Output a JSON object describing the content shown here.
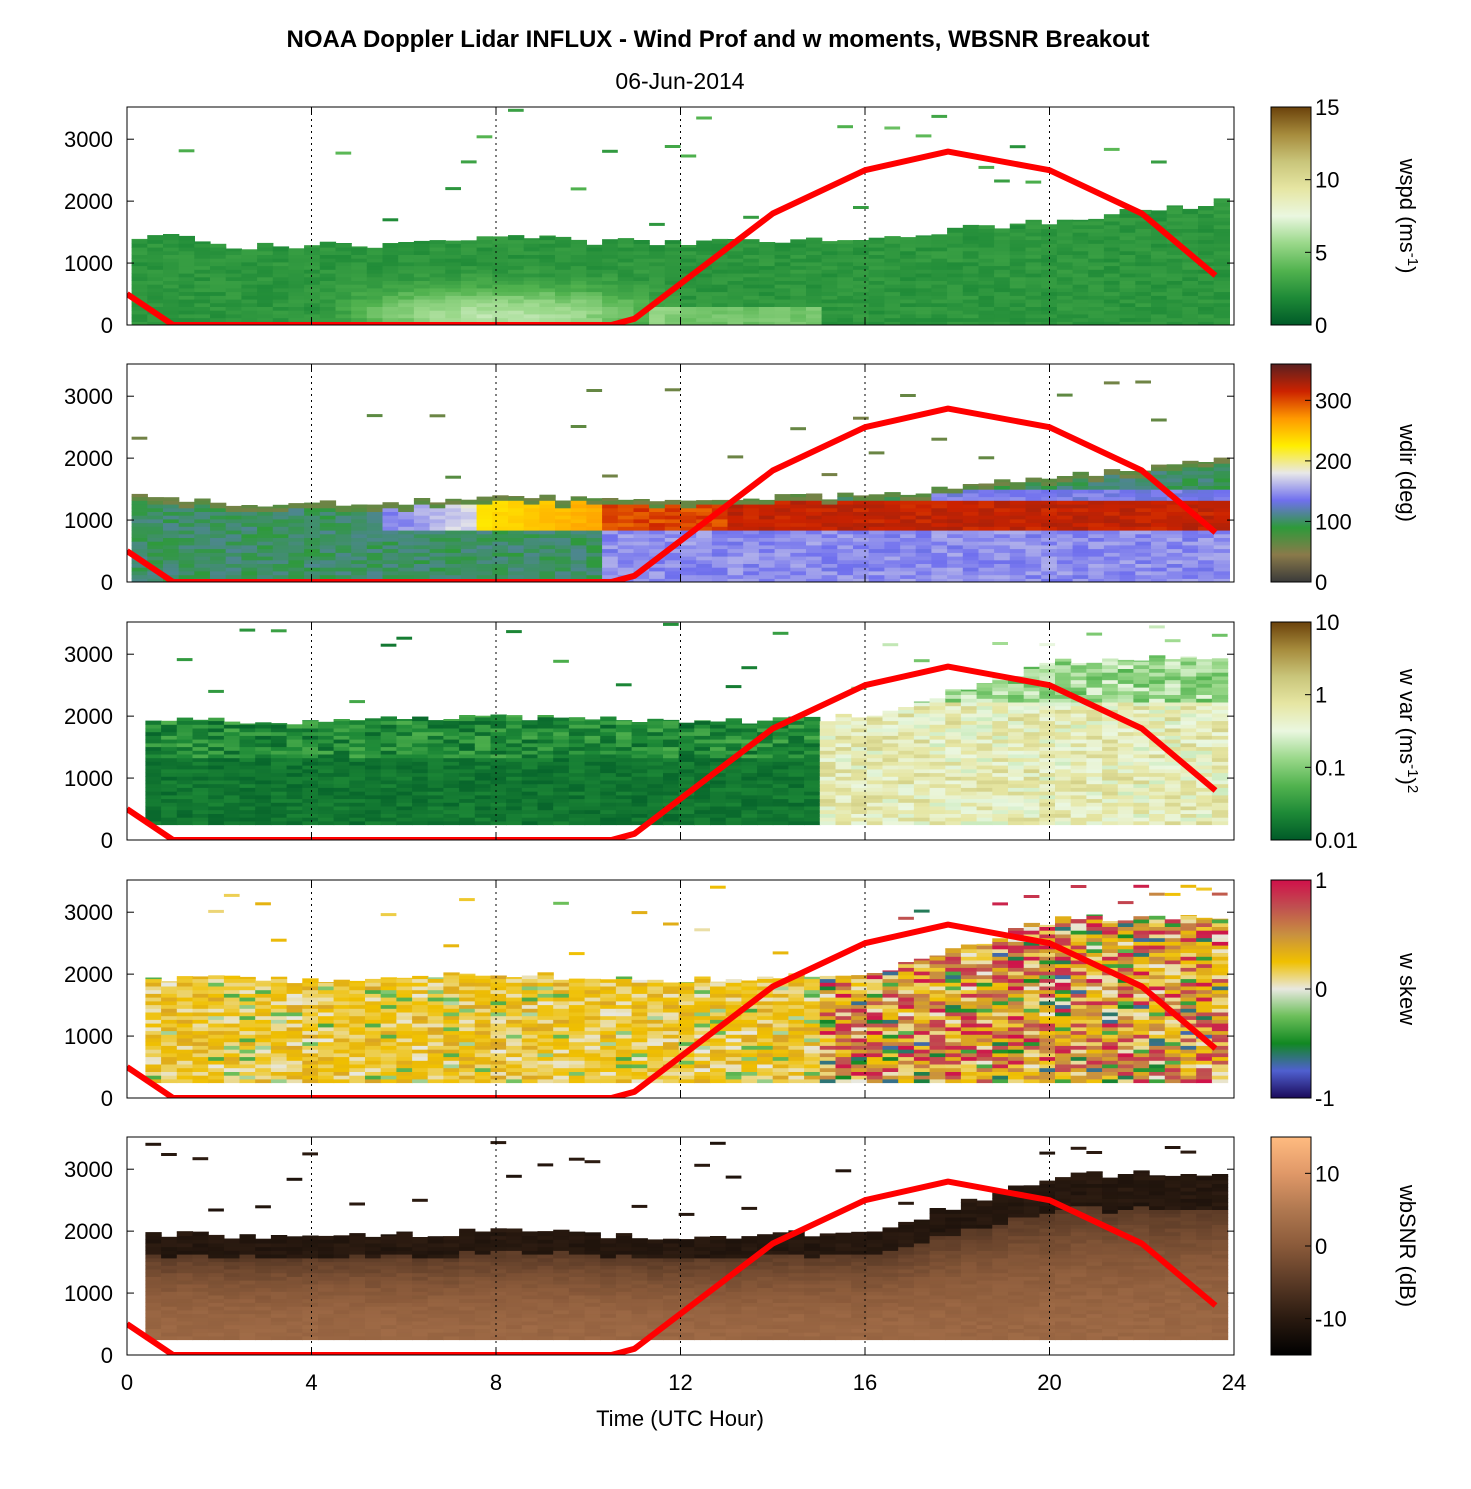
{
  "figure": {
    "title": "NOAA Doppler Lidar INFLUX - Wind Prof and w moments, WBSNR Breakout",
    "subtitle": "06-Jun-2014",
    "xlabel": "Time (UTC Hour)"
  },
  "chart_data": [
    {
      "type": "heatmap",
      "id": "wspd",
      "colorbar_label": "wspd (ms^-1)",
      "x": {
        "label": "Time (UTC Hour)",
        "range": [
          0,
          24
        ],
        "ticks": [
          "0",
          "4",
          "8",
          "12",
          "16",
          "20",
          "24"
        ]
      },
      "y": {
        "range": [
          0,
          3500
        ],
        "ticks": [
          "0",
          "1000",
          "2000",
          "3000"
        ]
      },
      "colorbar": {
        "scale": "linear",
        "range": [
          0,
          15
        ],
        "ticks": [
          "0",
          "5",
          "10",
          "15"
        ]
      },
      "colormap": [
        "#005a28",
        "#1e8a37",
        "#52b34f",
        "#9ad88a",
        "#eaf7e0",
        "#e6e6a3",
        "#c9c57a",
        "#a68b3c",
        "#6b420b"
      ],
      "signal_top_m": [
        [
          0.1,
          1450
        ],
        [
          1.2,
          1400
        ],
        [
          2,
          1250
        ],
        [
          4,
          1300
        ],
        [
          6,
          1300
        ],
        [
          8,
          1420
        ],
        [
          10,
          1350
        ],
        [
          12,
          1350
        ],
        [
          14,
          1350
        ],
        [
          16,
          1400
        ],
        [
          18,
          1550
        ],
        [
          20,
          1700
        ],
        [
          22,
          1850
        ],
        [
          23.6,
          2000
        ]
      ],
      "solar_elevation_line": {
        "color": "#ff0000",
        "points": [
          [
            0,
            500
          ],
          [
            1,
            0
          ],
          [
            10.5,
            0
          ],
          [
            11,
            100
          ],
          [
            14,
            1800
          ],
          [
            16,
            2500
          ],
          [
            17.8,
            2800
          ],
          [
            20,
            2500
          ],
          [
            22,
            1800
          ],
          [
            23.6,
            800
          ]
        ]
      }
    },
    {
      "type": "heatmap",
      "id": "wdir",
      "colorbar_label": "wdir (deg)",
      "x": {
        "label": "Time (UTC Hour)",
        "range": [
          0,
          24
        ],
        "ticks": [
          "0",
          "4",
          "8",
          "12",
          "16",
          "20",
          "24"
        ]
      },
      "y": {
        "range": [
          0,
          3500
        ],
        "ticks": [
          "0",
          "1000",
          "2000",
          "3000"
        ]
      },
      "colorbar": {
        "scale": "linear",
        "range": [
          0,
          360
        ],
        "ticks": [
          "0",
          "100",
          "200",
          "300"
        ]
      },
      "colormap": [
        "#3a3a3a",
        "#8a7a4a",
        "#2e9a3a",
        "#7070ee",
        "#e8e8e8",
        "#ffee00",
        "#ff9900",
        "#cc2200",
        "#5a2020"
      ],
      "signal_top_m": [
        [
          0.1,
          1450
        ],
        [
          2,
          1250
        ],
        [
          6,
          1300
        ],
        [
          8,
          1420
        ],
        [
          10,
          1350
        ],
        [
          12,
          1350
        ],
        [
          16,
          1400
        ],
        [
          18,
          1550
        ],
        [
          20,
          1700
        ],
        [
          23.6,
          2000
        ]
      ],
      "features": [
        {
          "name": "veering layer",
          "x_range": [
            5.5,
            13
          ],
          "y_range": [
            800,
            1400
          ],
          "value_deg": [
            200,
            330
          ]
        },
        {
          "name": "easterly surface layer",
          "x_range": [
            10,
            23.6
          ],
          "y_range": [
            0,
            900
          ],
          "value_deg": [
            120,
            180
          ]
        }
      ],
      "solar_elevation_line": {
        "color": "#ff0000",
        "points": [
          [
            0,
            500
          ],
          [
            1,
            0
          ],
          [
            10.5,
            0
          ],
          [
            11,
            100
          ],
          [
            14,
            1800
          ],
          [
            16,
            2500
          ],
          [
            17.8,
            2800
          ],
          [
            20,
            2500
          ],
          [
            22,
            1800
          ],
          [
            23.6,
            800
          ]
        ]
      }
    },
    {
      "type": "heatmap",
      "id": "wvar",
      "colorbar_label": "w var (ms^-1)^2",
      "x": {
        "label": "Time (UTC Hour)",
        "range": [
          0,
          24
        ],
        "ticks": [
          "0",
          "4",
          "8",
          "12",
          "16",
          "20",
          "24"
        ]
      },
      "y": {
        "range": [
          0,
          3500
        ],
        "ticks": [
          "0",
          "1000",
          "2000",
          "3000"
        ]
      },
      "colorbar": {
        "scale": "log",
        "range": [
          0.01,
          10
        ],
        "ticks": [
          "0.01",
          "0.1",
          "1",
          "10"
        ]
      },
      "colormap": [
        "#005a28",
        "#1e8a37",
        "#52b34f",
        "#9ad88a",
        "#eaf7e0",
        "#e6e6a3",
        "#c9c57a",
        "#a68b3c",
        "#6b420b"
      ],
      "range_gate_min_m": 250,
      "signal_top_m": [
        [
          0.4,
          1950
        ],
        [
          4,
          1900
        ],
        [
          8,
          2000
        ],
        [
          12,
          1900
        ],
        [
          16,
          2000
        ],
        [
          20,
          2900
        ],
        [
          23.6,
          2950
        ]
      ],
      "solar_elevation_line": {
        "color": "#ff0000",
        "points": [
          [
            0,
            500
          ],
          [
            1,
            0
          ],
          [
            10.5,
            0
          ],
          [
            11,
            100
          ],
          [
            14,
            1800
          ],
          [
            16,
            2500
          ],
          [
            17.8,
            2800
          ],
          [
            20,
            2500
          ],
          [
            22,
            1800
          ],
          [
            23.6,
            800
          ]
        ]
      }
    },
    {
      "type": "heatmap",
      "id": "wskew",
      "colorbar_label": "w skew",
      "x": {
        "label": "Time (UTC Hour)",
        "range": [
          0,
          24
        ],
        "ticks": [
          "0",
          "4",
          "8",
          "12",
          "16",
          "20",
          "24"
        ]
      },
      "y": {
        "range": [
          0,
          3500
        ],
        "ticks": [
          "0",
          "1000",
          "2000",
          "3000"
        ]
      },
      "colorbar": {
        "scale": "linear",
        "range": [
          -1,
          1
        ],
        "ticks": [
          "-1",
          "0",
          "1"
        ]
      },
      "colormap": [
        "#1a0a5a",
        "#5060d0",
        "#118822",
        "#6cbf5a",
        "#e8e8e0",
        "#f0c000",
        "#c89040",
        "#c05050",
        "#d0104a"
      ],
      "range_gate_min_m": 250,
      "signal_top_m": [
        [
          0.4,
          1950
        ],
        [
          4,
          1900
        ],
        [
          8,
          2000
        ],
        [
          12,
          1900
        ],
        [
          16,
          2000
        ],
        [
          20,
          2900
        ],
        [
          23.6,
          2950
        ]
      ],
      "solar_elevation_line": {
        "color": "#ff0000",
        "points": [
          [
            0,
            500
          ],
          [
            1,
            0
          ],
          [
            10.5,
            0
          ],
          [
            11,
            100
          ],
          [
            14,
            1800
          ],
          [
            16,
            2500
          ],
          [
            17.8,
            2800
          ],
          [
            20,
            2500
          ],
          [
            22,
            1800
          ],
          [
            23.6,
            800
          ]
        ]
      }
    },
    {
      "type": "heatmap",
      "id": "wbsnr",
      "colorbar_label": "wbSNR (dB)",
      "x": {
        "label": "Time (UTC Hour)",
        "range": [
          0,
          24
        ],
        "ticks": [
          "0",
          "4",
          "8",
          "12",
          "16",
          "20",
          "24"
        ]
      },
      "y": {
        "range": [
          0,
          3500
        ],
        "ticks": [
          "0",
          "1000",
          "2000",
          "3000"
        ]
      },
      "colorbar": {
        "scale": "linear",
        "range": [
          -15,
          15
        ],
        "ticks": [
          "-10",
          "0",
          "10"
        ]
      },
      "colormap": [
        "#000000",
        "#2a1a10",
        "#5a3a26",
        "#8a5a3a",
        "#b07850",
        "#e09868",
        "#ffbb80"
      ],
      "range_gate_min_m": 250,
      "signal_top_m": [
        [
          0.4,
          1950
        ],
        [
          4,
          1900
        ],
        [
          8,
          2000
        ],
        [
          12,
          1900
        ],
        [
          16,
          2000
        ],
        [
          20,
          2900
        ],
        [
          23.6,
          2950
        ]
      ],
      "solar_elevation_line": {
        "color": "#ff0000",
        "points": [
          [
            0,
            500
          ],
          [
            1,
            0
          ],
          [
            10.5,
            0
          ],
          [
            11,
            100
          ],
          [
            14,
            1800
          ],
          [
            16,
            2500
          ],
          [
            17.8,
            2800
          ],
          [
            20,
            2500
          ],
          [
            22,
            1800
          ],
          [
            23.6,
            800
          ]
        ]
      }
    }
  ]
}
